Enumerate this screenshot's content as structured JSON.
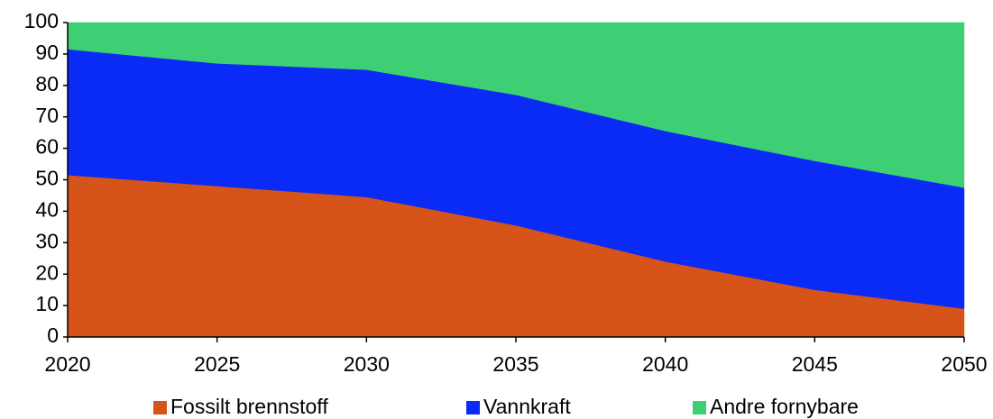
{
  "chart_data": {
    "type": "stacked_area",
    "x": [
      2020,
      2025,
      2030,
      2035,
      2040,
      2045,
      2050
    ],
    "series": [
      {
        "name": "Fossilt brennstoff",
        "color": "#d6541a",
        "values": [
          51.5,
          48,
          44.5,
          35.5,
          24,
          15,
          9
        ]
      },
      {
        "name": "Vannkraft",
        "color": "#0a2af5",
        "values": [
          40,
          39,
          40.5,
          41.5,
          41.5,
          41,
          38.5
        ]
      },
      {
        "name": "Andre fornybare",
        "color": "#3ecf74",
        "values": [
          8.5,
          13,
          15,
          23,
          34.5,
          44,
          52.5
        ]
      }
    ],
    "xlim": [
      2020,
      2050
    ],
    "xticks": [
      2020,
      2025,
      2030,
      2035,
      2040,
      2045,
      2050
    ],
    "ylim": [
      0,
      100
    ],
    "yticks": [
      0,
      10,
      20,
      30,
      40,
      50,
      60,
      70,
      80,
      90,
      100
    ],
    "grid": false,
    "legend": "bottom"
  }
}
